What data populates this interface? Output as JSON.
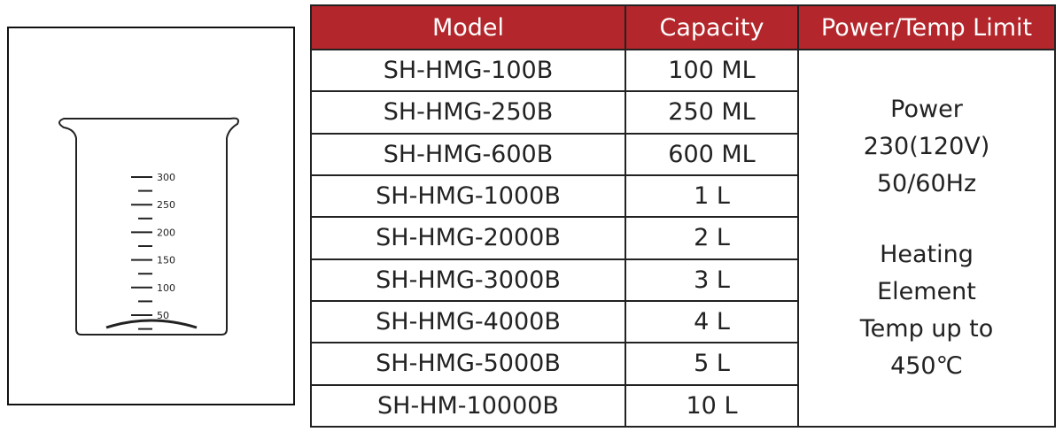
{
  "beaker": {
    "graduations": [
      "300",
      "250",
      "200",
      "150",
      "100",
      "50"
    ]
  },
  "table": {
    "header": [
      "Model",
      "Capacity",
      "Power/Temp Limit"
    ],
    "rows": [
      [
        "SH-HMG-100B",
        "100 ML"
      ],
      [
        "SH-HMG-250B",
        "250 ML"
      ],
      [
        "SH-HMG-600B",
        "600 ML"
      ],
      [
        "SH-HMG-1000B",
        "1 L"
      ],
      [
        "SH-HMG-2000B",
        "2 L"
      ],
      [
        "SH-HMG-3000B",
        "3 L"
      ],
      [
        "SH-HMG-4000B",
        "4 L"
      ],
      [
        "SH-HMG-5000B",
        "5 L"
      ],
      [
        "SH-HM-10000B",
        "10 L"
      ]
    ],
    "merged_cell": {
      "power": [
        "Power",
        "230(120V)",
        "50/60Hz"
      ],
      "heating": [
        "Heating",
        "Element",
        "Temp up to",
        "450℃"
      ]
    }
  }
}
